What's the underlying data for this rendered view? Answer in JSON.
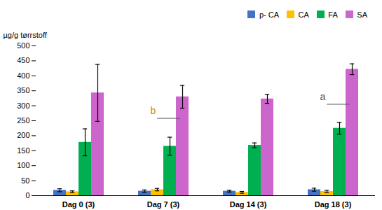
{
  "chart_data": {
    "type": "bar",
    "categories": [
      "Dag 0 (3)",
      "Dag 7 (3)",
      "Dag 14 (3)",
      "Dag 18 (3)"
    ],
    "series": [
      {
        "name": "p- CA",
        "color": "#4472C4",
        "values": [
          18,
          15,
          15,
          20
        ],
        "errors": [
          5,
          4,
          3,
          5
        ]
      },
      {
        "name": "CA",
        "color": "#FFC000",
        "values": [
          13,
          20,
          11,
          14
        ],
        "errors": [
          3,
          4,
          3,
          4
        ]
      },
      {
        "name": "FA",
        "color": "#00B050",
        "values": [
          178,
          165,
          168,
          225
        ],
        "errors": [
          45,
          30,
          8,
          20
        ]
      },
      {
        "name": "SA",
        "color": "#CC66CC",
        "values": [
          343,
          330,
          323,
          422
        ],
        "errors": [
          95,
          38,
          15,
          18
        ]
      }
    ],
    "ylabel": "µg/g tørrstoff",
    "ylim": [
      0,
      500
    ],
    "yticks": [
      0,
      50,
      100,
      150,
      200,
      250,
      300,
      350,
      400,
      450,
      500
    ],
    "grid": false,
    "legend": "upper right",
    "annotations": [
      {
        "text": "b",
        "category": "Dag 7 (3)",
        "y": 272,
        "color": "#CC8800",
        "line_y": 258,
        "line_color": "#555555"
      },
      {
        "text": "a",
        "category": "Dag 18 (3)",
        "y": 318,
        "color": "#555555",
        "line_y": 305,
        "line_color": "#555555"
      }
    ]
  }
}
